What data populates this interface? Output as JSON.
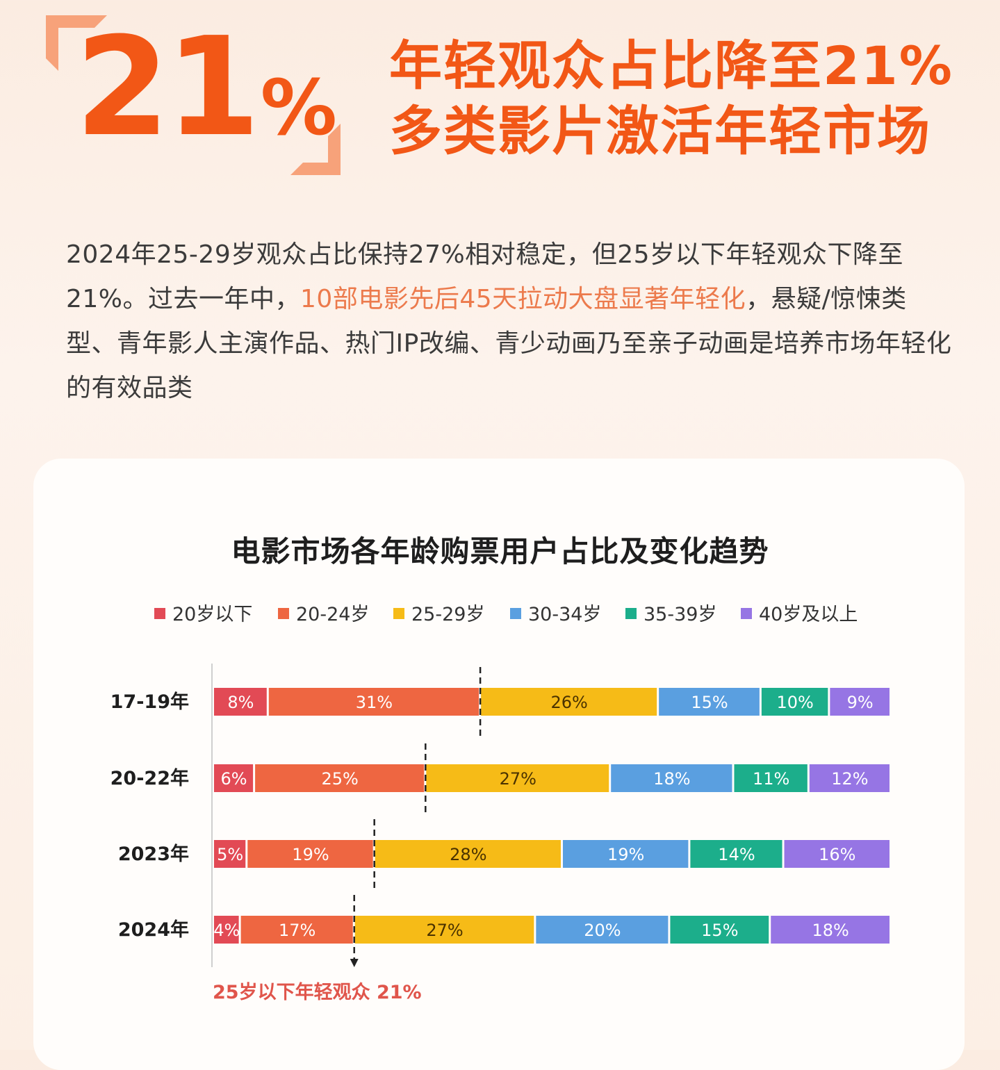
{
  "hero": {
    "number": "21",
    "percent": "%",
    "headline_line1": "年轻观众占比降至21%",
    "headline_line2": "多类影片激活年轻市场"
  },
  "intro": {
    "part1": "2024年25-29岁观众占比保持27%相对稳定，但25岁以下年轻观众下降至21%。过去一年中，",
    "highlight": "10部电影先后45天拉动大盘显著年轻化",
    "part2": "，悬疑/惊悚类型、青年影人主演作品、热门IP改编、青少动画乃至亲子动画是培养市场年轻化的有效品类"
  },
  "colors": {
    "accent": "#f25716",
    "highlight_text": "#ec7a4c",
    "series": [
      "#e24a55",
      "#ee6641",
      "#f6bb17",
      "#5a9fe0",
      "#1cae8b",
      "#9675e4"
    ],
    "value_label_dark": "#4a3200",
    "value_label_light": "#ffffff",
    "note": "#e0554b"
  },
  "chart_data": {
    "type": "bar",
    "orientation": "horizontal",
    "stacked": true,
    "title": "电影市场各年龄购票用户占比及变化趋势",
    "categories": [
      "17-19年",
      "20-22年",
      "2023年",
      "2024年"
    ],
    "series": [
      {
        "name": "20岁以下",
        "values": [
          8,
          6,
          5,
          4
        ],
        "labels": [
          "8%",
          "6%",
          "5%",
          "4%"
        ]
      },
      {
        "name": "20-24岁",
        "values": [
          31,
          25,
          19,
          17
        ],
        "labels": [
          "31%",
          "25%",
          "19%",
          "17%"
        ]
      },
      {
        "name": "25-29岁",
        "values": [
          26,
          27,
          28,
          27
        ],
        "labels": [
          "26%",
          "27%",
          "28%",
          "27%"
        ]
      },
      {
        "name": "30-34岁",
        "values": [
          15,
          18,
          19,
          20
        ],
        "labels": [
          "15%",
          "18%",
          "19%",
          "20%"
        ]
      },
      {
        "name": "35-39岁",
        "values": [
          10,
          11,
          14,
          15
        ],
        "labels": [
          "10%",
          "11%",
          "14%",
          "15%"
        ]
      },
      {
        "name": "40岁及以上",
        "values": [
          9,
          12,
          16,
          18
        ],
        "labels": [
          "9%",
          "12%",
          "16%",
          "18%"
        ]
      }
    ],
    "legend_position": "top",
    "grid": false,
    "annotation": "25岁以下年轻观众 21%"
  }
}
